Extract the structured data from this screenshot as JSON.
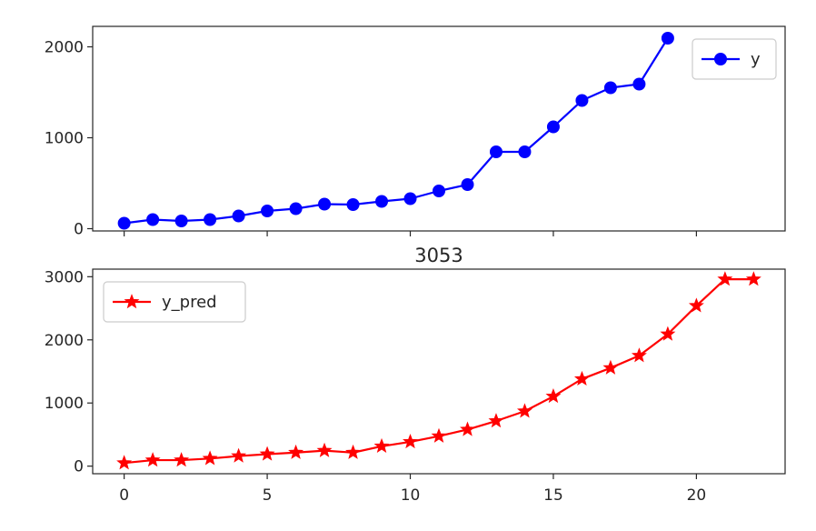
{
  "chart_data": [
    {
      "type": "line",
      "title": "",
      "xlabel": "",
      "ylabel": "",
      "xlim": [
        -1.1,
        23.1
      ],
      "ylim": [
        -25,
        2225
      ],
      "x_ticks": [
        0,
        5,
        10,
        15,
        20
      ],
      "x_ticks_labeled": false,
      "y_ticks": [
        0,
        1000,
        2000
      ],
      "grid": false,
      "legend_position": "upper right",
      "series": [
        {
          "name": "y",
          "color": "#0000ff",
          "marker": "circle",
          "x": [
            0,
            1,
            2,
            3,
            4,
            5,
            6,
            7,
            8,
            9,
            10,
            11,
            12,
            13,
            14,
            15,
            16,
            17,
            18,
            19
          ],
          "y": [
            60,
            100,
            85,
            100,
            140,
            195,
            220,
            270,
            265,
            300,
            330,
            415,
            485,
            845,
            845,
            1120,
            1410,
            1550,
            1590,
            2095
          ]
        }
      ]
    },
    {
      "type": "line",
      "title": "3053",
      "xlabel": "",
      "ylabel": "",
      "xlim": [
        -1.1,
        23.1
      ],
      "ylim": [
        -120,
        3120
      ],
      "x_ticks": [
        0,
        5,
        10,
        15,
        20
      ],
      "x_ticks_labeled": true,
      "y_ticks": [
        0,
        1000,
        2000,
        3000
      ],
      "grid": false,
      "legend_position": "upper left",
      "series": [
        {
          "name": "y_pred",
          "color": "#ff0000",
          "marker": "star",
          "x": [
            0,
            1,
            2,
            3,
            4,
            5,
            6,
            7,
            8,
            9,
            10,
            11,
            12,
            13,
            14,
            15,
            16,
            17,
            18,
            19,
            20,
            21,
            22
          ],
          "y": [
            50,
            95,
            95,
            120,
            160,
            190,
            215,
            245,
            215,
            315,
            385,
            475,
            580,
            715,
            870,
            1105,
            1380,
            1555,
            1750,
            2090,
            2540,
            2960,
            2960
          ]
        }
      ]
    }
  ]
}
